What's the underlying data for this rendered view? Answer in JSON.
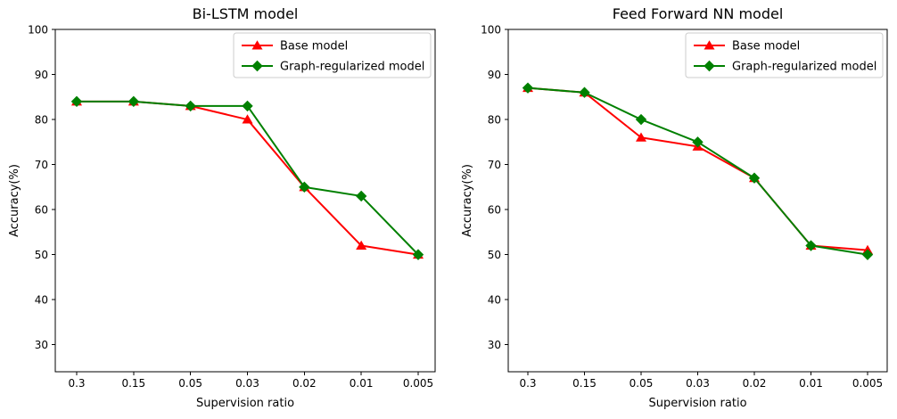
{
  "figure": {
    "background": "#ffffff",
    "axis_color": "#000000",
    "legend_border_color": "#cccccc"
  },
  "chart_data": [
    {
      "type": "line",
      "title": "Bi-LSTM model",
      "xlabel": "Supervision ratio",
      "ylabel": "Accuracy(%)",
      "x_tick_labels": [
        "0.3",
        "0.15",
        "0.05",
        "0.03",
        "0.02",
        "0.01",
        "0.005"
      ],
      "y_ticks": [
        100,
        90,
        80,
        70,
        60,
        50,
        40,
        30
      ],
      "ylim": [
        24,
        100
      ],
      "grid": false,
      "legend_position": "upper right",
      "series": [
        {
          "name": "Base model",
          "color": "#ff0000",
          "marker": "triangle",
          "values": [
            84,
            84,
            83,
            80,
            65,
            52,
            50
          ]
        },
        {
          "name": "Graph-regularized model",
          "color": "#008000",
          "marker": "diamond",
          "values": [
            84,
            84,
            83,
            83,
            65,
            63,
            50
          ]
        }
      ]
    },
    {
      "type": "line",
      "title": "Feed Forward NN model",
      "xlabel": "Supervision ratio",
      "ylabel": "Accuracy(%)",
      "x_tick_labels": [
        "0.3",
        "0.15",
        "0.05",
        "0.03",
        "0.02",
        "0.01",
        "0.005"
      ],
      "y_ticks": [
        100,
        90,
        80,
        70,
        60,
        50,
        40,
        30
      ],
      "ylim": [
        24,
        100
      ],
      "grid": false,
      "legend_position": "upper right",
      "series": [
        {
          "name": "Base model",
          "color": "#ff0000",
          "marker": "triangle",
          "values": [
            87,
            86,
            76,
            74,
            67,
            52,
            51
          ]
        },
        {
          "name": "Graph-regularized model",
          "color": "#008000",
          "marker": "diamond",
          "values": [
            87,
            86,
            80,
            75,
            67,
            52,
            50
          ]
        }
      ]
    }
  ]
}
